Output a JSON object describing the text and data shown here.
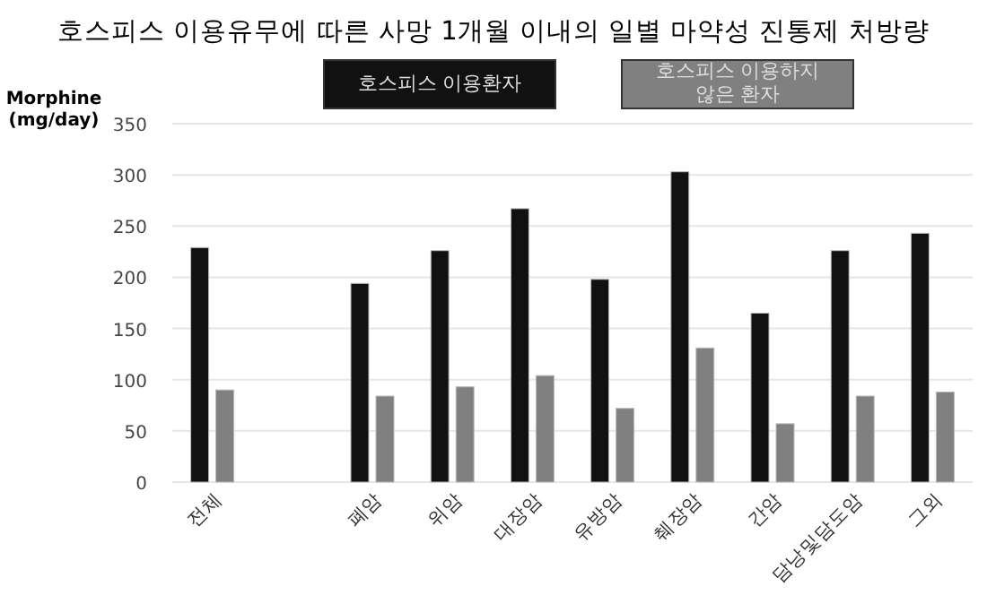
{
  "chart_data": {
    "type": "bar",
    "title": "호스피스 이용유무에 따른 사망 1개월 이내의 일별 마약성 진통제 처방량",
    "ylabel": "Morphine (mg/day)",
    "categories": [
      "전체",
      null,
      "폐암",
      "위암",
      "대장암",
      "유방암",
      "췌장암",
      "간암",
      "담낭및담도암",
      "그외"
    ],
    "series": [
      {
        "name": "호스피스 이용환자",
        "color": "#111111",
        "values": [
          229,
          null,
          194,
          226,
          267,
          198,
          303,
          165,
          226,
          243
        ]
      },
      {
        "name": "호스피스 이용하지 않은 환자",
        "color": "#808080",
        "values": [
          90,
          null,
          84,
          93,
          104,
          72,
          131,
          57,
          84,
          88
        ]
      }
    ],
    "ylim": [
      0,
      350
    ],
    "yticks": [
      0,
      50,
      100,
      150,
      200,
      250,
      300,
      350
    ],
    "grid": "y",
    "legend": "top"
  }
}
